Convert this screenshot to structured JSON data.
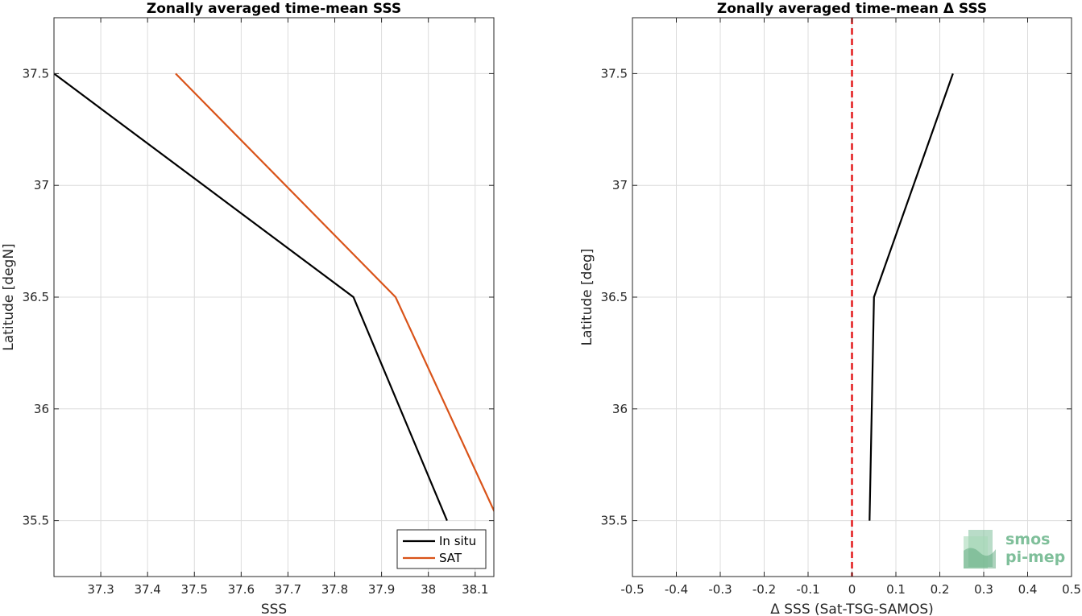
{
  "chart_data": [
    {
      "type": "line",
      "title": "Zonally averaged time-mean SSS",
      "xlabel": "SSS",
      "ylabel": "Latitude [degN]",
      "xlim": [
        37.2,
        38.14
      ],
      "ylim": [
        35.25,
        37.75
      ],
      "x_ticks": [
        37.3,
        37.4,
        37.5,
        37.6,
        37.7,
        37.8,
        37.9,
        38,
        38.1
      ],
      "x_tick_labels": [
        "37.3",
        "37.4",
        "37.5",
        "37.6",
        "37.7",
        "37.8",
        "37.9",
        "38",
        "38.1"
      ],
      "y_ticks": [
        35.5,
        36,
        36.5,
        37,
        37.5
      ],
      "y_tick_labels": [
        "35.5",
        "36",
        "36.5",
        "37",
        "37.5"
      ],
      "grid": true,
      "legend_position": "bottom-right",
      "series": [
        {
          "name": "In situ",
          "color": "#000000",
          "x": [
            38.04,
            37.84,
            37.2
          ],
          "y": [
            35.5,
            36.5,
            37.5
          ]
        },
        {
          "name": "SAT",
          "color": "#d95319",
          "x": [
            38.15,
            37.93,
            37.46
          ],
          "y": [
            35.5,
            36.5,
            37.5
          ]
        }
      ]
    },
    {
      "type": "line",
      "title": "Zonally averaged time-mean Δ SSS",
      "xlabel": "Δ SSS (Sat-TSG-SAMOS)",
      "ylabel": "Latitude [deg]",
      "xlim": [
        -0.5,
        0.5
      ],
      "ylim": [
        35.25,
        37.75
      ],
      "x_ticks": [
        -0.5,
        -0.4,
        -0.3,
        -0.2,
        -0.1,
        0,
        0.1,
        0.2,
        0.3,
        0.4,
        0.5
      ],
      "x_tick_labels": [
        "-0.5",
        "-0.4",
        "-0.3",
        "-0.2",
        "-0.1",
        "0",
        "0.1",
        "0.2",
        "0.3",
        "0.4",
        "0.5"
      ],
      "y_ticks": [
        35.5,
        36,
        36.5,
        37,
        37.5
      ],
      "y_tick_labels": [
        "35.5",
        "36",
        "36.5",
        "37",
        "37.5"
      ],
      "grid": true,
      "reference_line": {
        "x": 0,
        "color": "#e31a1c",
        "style": "dashed"
      },
      "series": [
        {
          "color": "#000000",
          "x": [
            0.04,
            0.05,
            0.23
          ],
          "y": [
            35.5,
            36.5,
            37.5
          ]
        }
      ]
    }
  ],
  "logo": {
    "line1": "smos",
    "line2": "pi-mep",
    "color": "#7fbf9a"
  }
}
